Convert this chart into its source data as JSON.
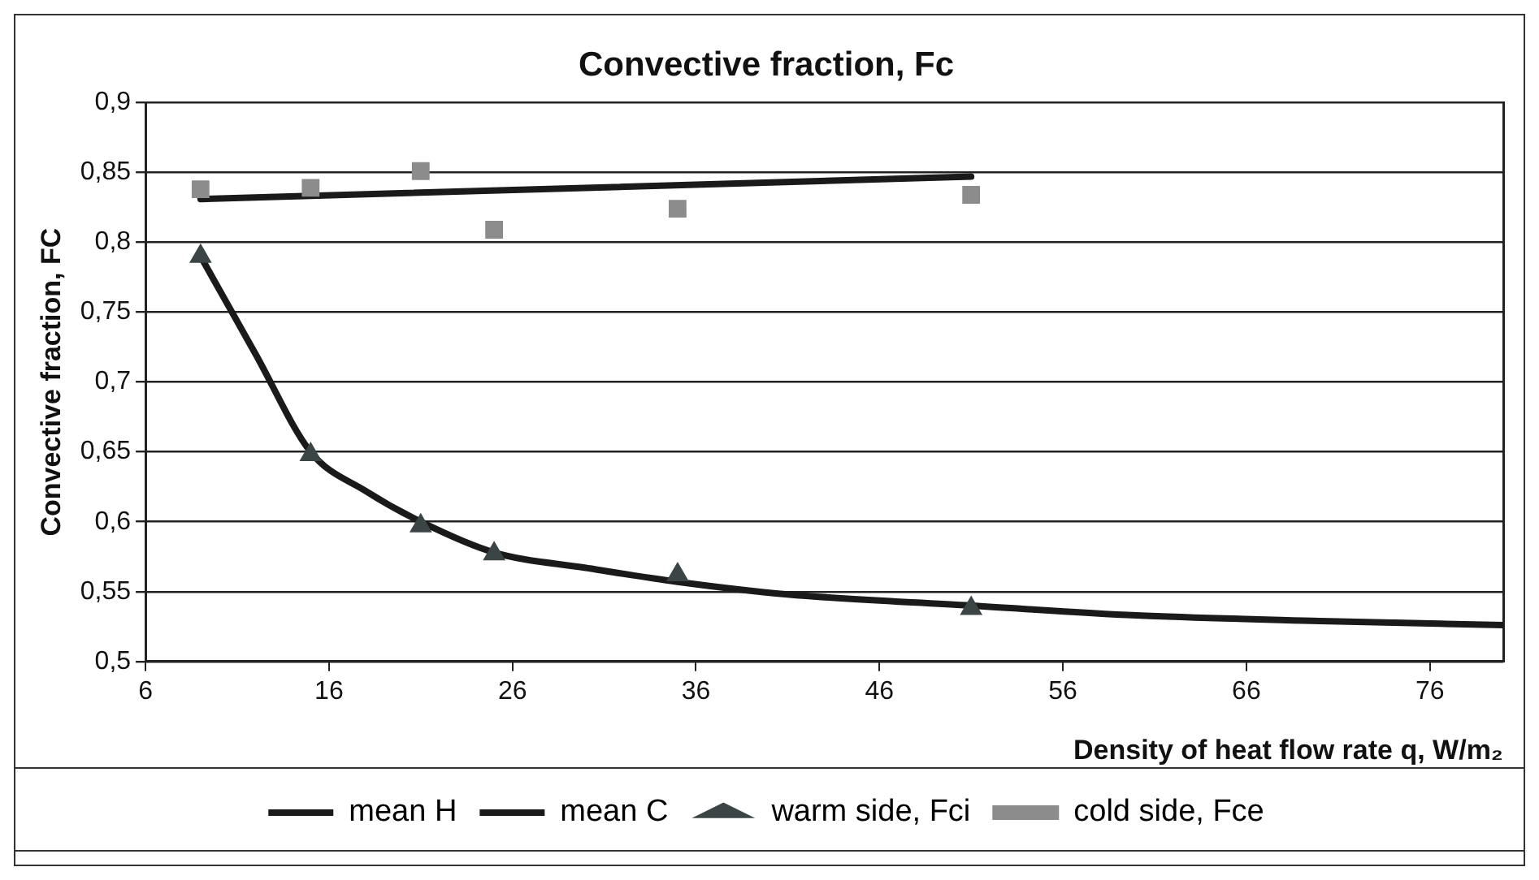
{
  "chart_data": {
    "type": "scatter",
    "title": "Convective fraction, Fc",
    "xlabel": "Density of heat flow rate q, W/m₂",
    "ylabel": "Convective fraction, FC",
    "xlim": [
      6,
      80
    ],
    "xticks": [
      6,
      16,
      26,
      36,
      46,
      56,
      66,
      76
    ],
    "ylim": [
      0.5,
      0.9
    ],
    "yticks": [
      {
        "value": 0.5,
        "label": "0,5"
      },
      {
        "value": 0.55,
        "label": "0,55"
      },
      {
        "value": 0.6,
        "label": "0,6"
      },
      {
        "value": 0.65,
        "label": "0,65"
      },
      {
        "value": 0.7,
        "label": "0,7"
      },
      {
        "value": 0.75,
        "label": "0,75"
      },
      {
        "value": 0.8,
        "label": "0,8"
      },
      {
        "value": 0.85,
        "label": "0,85"
      },
      {
        "value": 0.9,
        "label": "0,9"
      }
    ],
    "grid": "y",
    "legend": "bottom",
    "series": [
      {
        "name": "mean H",
        "type": "line",
        "color": "#1a1a1a",
        "marker": "none",
        "x": [
          9,
          12,
          15,
          18,
          21,
          25,
          30,
          35,
          41,
          51,
          60,
          70,
          80
        ],
        "values": [
          0.79,
          0.72,
          0.65,
          0.622,
          0.6,
          0.578,
          0.567,
          0.557,
          0.548,
          0.54,
          0.533,
          0.529,
          0.526
        ]
      },
      {
        "name": "mean C",
        "type": "line",
        "color": "#1a1a1a",
        "marker": "none",
        "x": [
          9,
          51
        ],
        "values": [
          0.831,
          0.847
        ]
      },
      {
        "name": "warm side, Fci",
        "type": "scatter",
        "color": "#3c4545",
        "marker": "triangle",
        "x": [
          9,
          15,
          21,
          25,
          35,
          51
        ],
        "values": [
          0.79,
          0.648,
          0.597,
          0.577,
          0.562,
          0.538
        ]
      },
      {
        "name": "cold side, Fce",
        "type": "scatter",
        "color": "#8c8c8c",
        "marker": "square",
        "x": [
          9,
          15,
          21,
          25,
          35,
          51
        ],
        "values": [
          0.838,
          0.839,
          0.851,
          0.809,
          0.824,
          0.834
        ]
      }
    ]
  }
}
